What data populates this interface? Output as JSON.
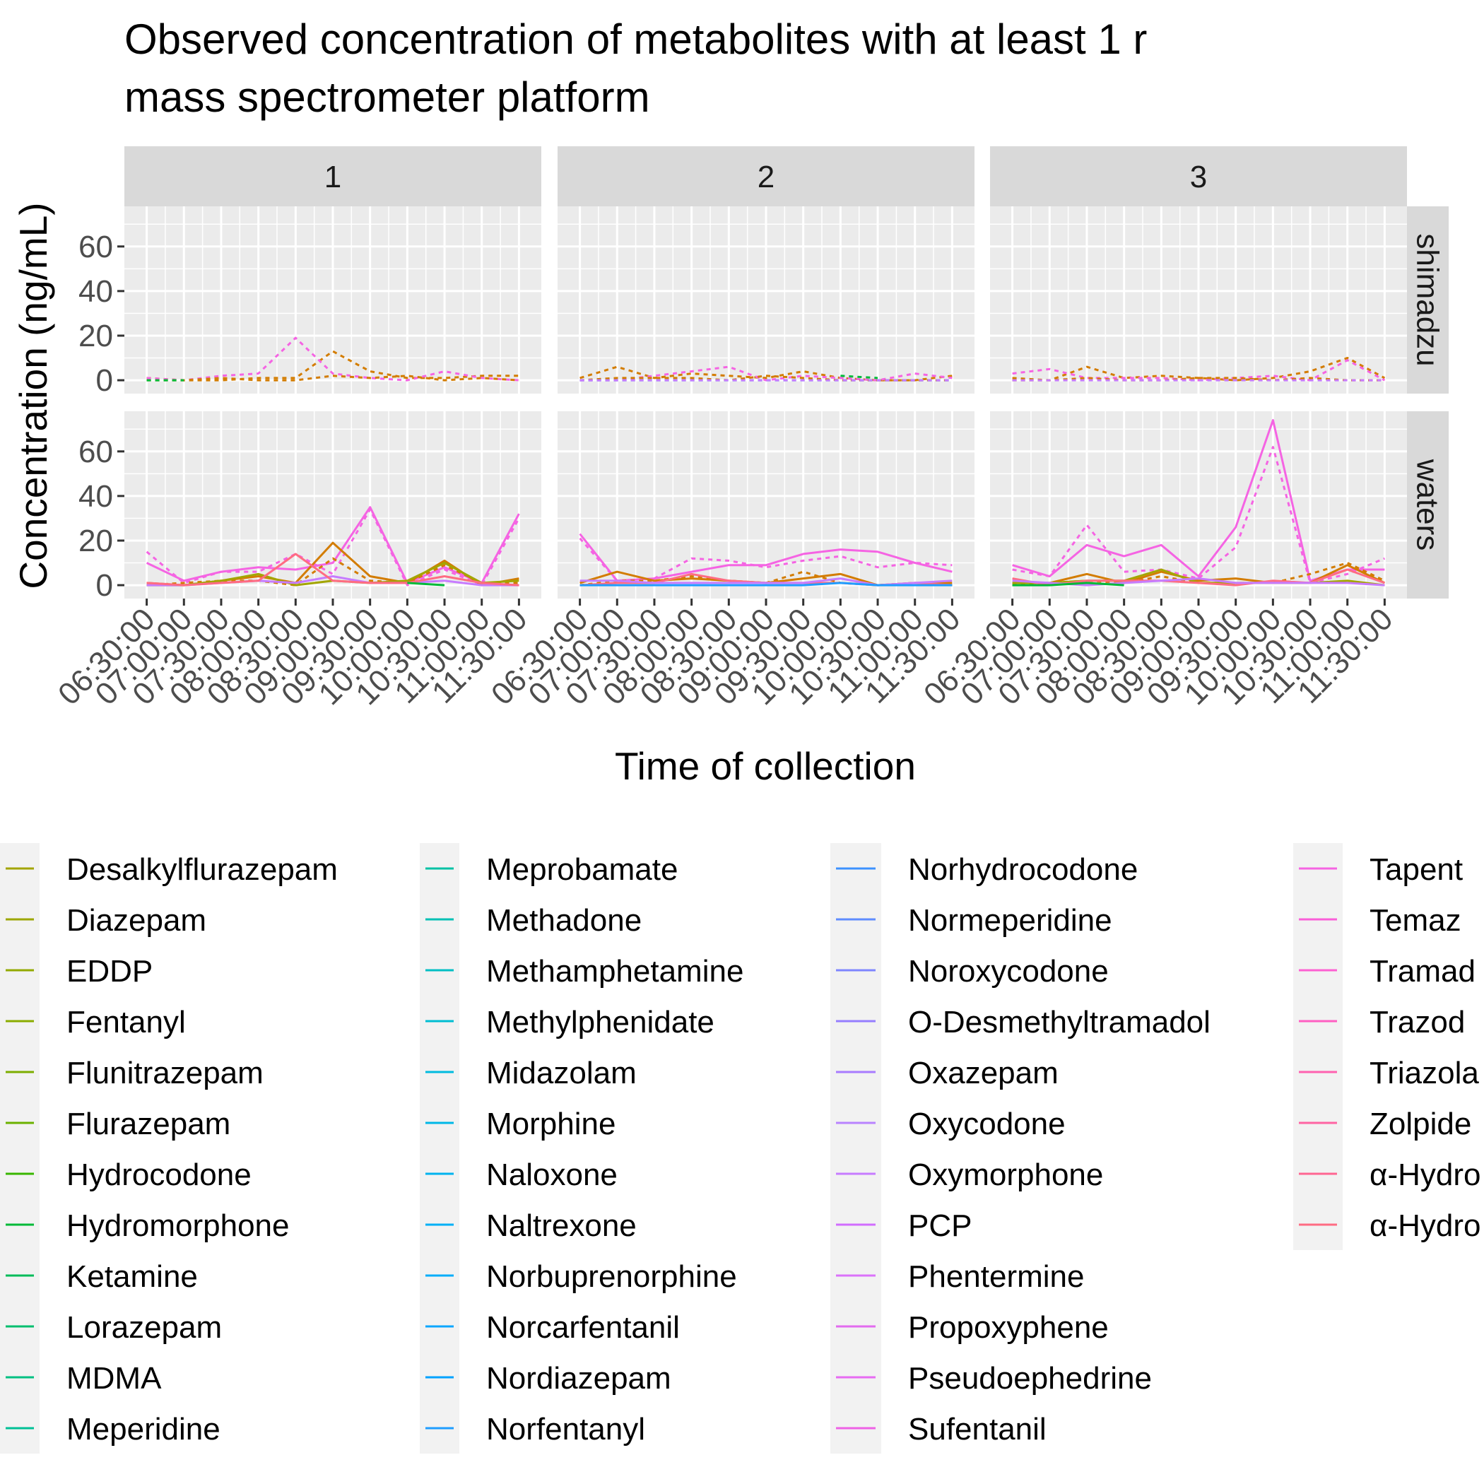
{
  "chart_data": {
    "type": "line",
    "title": "Observed concentration of metabolites with at least 1 r",
    "subtitle": "mass spectrometer platform",
    "xlabel": "Time of collection",
    "ylabel": "Concentration (ng/mL)",
    "ylim": [
      -6,
      78
    ],
    "y_ticks": [
      "0",
      "20",
      "40",
      "60"
    ],
    "x": [
      "06:30:00",
      "07:00:00",
      "07:30:00",
      "08:00:00",
      "08:30:00",
      "09:00:00",
      "09:30:00",
      "10:00:00",
      "10:30:00",
      "11:00:00",
      "11:30:00"
    ],
    "facet_cols": [
      "1",
      "2",
      "3"
    ],
    "facet_rows": [
      "shimadzu",
      "waters"
    ],
    "grid": true,
    "legend_position": "bottom",
    "legend_entries": [
      "Desalkylflurazepam",
      "Diazepam",
      "EDDP",
      "Fentanyl",
      "Flunitrazepam",
      "Flurazepam",
      "Hydrocodone",
      "Hydromorphone",
      "Ketamine",
      "Lorazepam",
      "MDMA",
      "Meperidine",
      "Meprobamate",
      "Methadone",
      "Methamphetamine",
      "Methylphenidate",
      "Midazolam",
      "Morphine",
      "Naloxone",
      "Naltrexone",
      "Norbuprenorphine",
      "Norcarfentanil",
      "Nordiazepam",
      "Norfentanyl",
      "Norhydrocodone",
      "Normeperidine",
      "Noroxycodone",
      "O-Desmethyltramadol",
      "Oxazepam",
      "Oxycodone",
      "Oxymorphone",
      "PCP",
      "Phentermine",
      "Propoxyphene",
      "Pseudoephedrine",
      "Sufentanil",
      "Tapent",
      "Temaz",
      "Tramad",
      "Trazod",
      "Triazola",
      "Zolpide",
      "α-Hydro",
      "α-Hydro"
    ],
    "legend_colors": [
      "#A3A500",
      "#9CA700",
      "#93AA00",
      "#8AAC00",
      "#7CAE00",
      "#6BB100",
      "#39B600",
      "#00BA38",
      "#00BC59",
      "#00BE6E",
      "#00C082",
      "#00C096",
      "#00C1A5",
      "#00C0B4",
      "#00BFC4",
      "#00BDD2",
      "#00BBDF",
      "#00B8E7",
      "#00B3EF",
      "#00B0F6",
      "#02ADFA",
      "#0CA6FE",
      "#00A2FF",
      "#1F9DFF",
      "#3D92FF",
      "#5F8CFF",
      "#7F86FF",
      "#957EFF",
      "#A87BFF",
      "#B983FF",
      "#C77CFF",
      "#D16DFF",
      "#DB72FB",
      "#E36BEF",
      "#E76BF3",
      "#EE62E6",
      "#F564E3",
      "#FA5FD8",
      "#FD61D1",
      "#FF5FC2",
      "#FF61B0",
      "#FF64A3",
      "#FF6692",
      "#FF6C83"
    ],
    "series": [
      {
        "facet": "1-shimadzu",
        "color": "#D37C00",
        "style": "dashed",
        "values": [
          1,
          0,
          0,
          1,
          1,
          13,
          4,
          1,
          1,
          2,
          2
        ]
      },
      {
        "facet": "1-shimadzu",
        "color": "#F564E3",
        "style": "dashed",
        "values": [
          1,
          0,
          2,
          3,
          19,
          3,
          1,
          0,
          4,
          1,
          0
        ]
      },
      {
        "facet": "1-shimadzu",
        "color": "#D37C00",
        "style": "dashed",
        "values": [
          0,
          0,
          1,
          0,
          0,
          2,
          1,
          2,
          0,
          1,
          0
        ]
      },
      {
        "facet": "1-shimadzu",
        "color": "#00BA38",
        "style": "dashed",
        "values": [
          0,
          0,
          null,
          null,
          null,
          null,
          null,
          null,
          0,
          null,
          null
        ]
      },
      {
        "facet": "2-shimadzu",
        "color": "#D37C00",
        "style": "dashed",
        "values": [
          1,
          6,
          1,
          3,
          2,
          1,
          4,
          1,
          0,
          0,
          2
        ]
      },
      {
        "facet": "2-shimadzu",
        "color": "#F564E3",
        "style": "dashed",
        "values": [
          0,
          0,
          2,
          4,
          6,
          0,
          2,
          1,
          0,
          3,
          1
        ]
      },
      {
        "facet": "2-shimadzu",
        "color": "#D37C00",
        "style": "dashed",
        "values": [
          0,
          1,
          1,
          1,
          0,
          2,
          1,
          0,
          0,
          0,
          0
        ]
      },
      {
        "facet": "2-shimadzu",
        "color": "#00BA38",
        "style": "dashed",
        "values": [
          null,
          null,
          null,
          null,
          null,
          null,
          null,
          2,
          1,
          null,
          null
        ]
      },
      {
        "facet": "2-shimadzu",
        "color": "#1F9DFF",
        "style": "dashed",
        "values": [
          0,
          0,
          0,
          0,
          0,
          0,
          0,
          0,
          0,
          0,
          0
        ]
      },
      {
        "facet": "2-shimadzu",
        "color": "#C77CFF",
        "style": "dashed",
        "values": [
          0,
          0,
          0,
          0,
          0,
          0,
          0,
          0,
          0,
          0,
          0
        ]
      },
      {
        "facet": "3-shimadzu",
        "color": "#D37C00",
        "style": "dashed",
        "values": [
          1,
          0,
          6,
          1,
          2,
          1,
          0,
          1,
          4,
          10,
          1
        ]
      },
      {
        "facet": "3-shimadzu",
        "color": "#F564E3",
        "style": "dashed",
        "values": [
          3,
          5,
          1,
          1,
          1,
          0,
          1,
          2,
          0,
          9,
          0
        ]
      },
      {
        "facet": "3-shimadzu",
        "color": "#D37C00",
        "style": "dashed",
        "values": [
          0,
          0,
          1,
          0,
          0,
          1,
          1,
          0,
          1,
          0,
          0
        ]
      },
      {
        "facet": "3-shimadzu",
        "color": "#C77CFF",
        "style": "dashed",
        "values": [
          0,
          0,
          0,
          0,
          0,
          0,
          0,
          0,
          0,
          0,
          0
        ]
      },
      {
        "facet": "1-waters",
        "color": "#F564E3",
        "style": "solid",
        "values": [
          10,
          2,
          6,
          8,
          7,
          10,
          35,
          1,
          8,
          1,
          32
        ]
      },
      {
        "facet": "1-waters",
        "color": "#F564E3",
        "style": "dashed",
        "values": [
          15,
          1,
          6,
          6,
          14,
          5,
          34,
          0,
          7,
          0,
          30
        ]
      },
      {
        "facet": "1-waters",
        "color": "#D37C00",
        "style": "solid",
        "values": [
          1,
          0,
          2,
          4,
          1,
          19,
          4,
          1,
          11,
          0,
          3
        ]
      },
      {
        "facet": "1-waters",
        "color": "#D37C00",
        "style": "dashed",
        "values": [
          0,
          1,
          2,
          2,
          0,
          12,
          2,
          1,
          9,
          1,
          1
        ]
      },
      {
        "facet": "1-waters",
        "color": "#A3A500",
        "style": "solid",
        "values": [
          0,
          0,
          2,
          5,
          0,
          2,
          1,
          2,
          10,
          1,
          2
        ]
      },
      {
        "facet": "1-waters",
        "color": "#C77CFF",
        "style": "solid",
        "values": [
          0,
          0,
          1,
          2,
          1,
          4,
          1,
          1,
          2,
          0,
          0
        ]
      },
      {
        "facet": "1-waters",
        "color": "#FF6C83",
        "style": "solid",
        "values": [
          1,
          0,
          1,
          2,
          14,
          2,
          1,
          1,
          4,
          1,
          0
        ]
      },
      {
        "facet": "1-waters",
        "color": "#00BA38",
        "style": "solid",
        "values": [
          null,
          null,
          null,
          null,
          null,
          null,
          null,
          1,
          0,
          null,
          null
        ]
      },
      {
        "facet": "2-waters",
        "color": "#F564E3",
        "style": "solid",
        "values": [
          23,
          2,
          3,
          6,
          9,
          9,
          14,
          16,
          15,
          10,
          6
        ]
      },
      {
        "facet": "2-waters",
        "color": "#F564E3",
        "style": "dashed",
        "values": [
          21,
          2,
          3,
          12,
          11,
          8,
          11,
          13,
          8,
          10,
          9
        ]
      },
      {
        "facet": "2-waters",
        "color": "#D37C00",
        "style": "solid",
        "values": [
          1,
          6,
          2,
          3,
          2,
          1,
          3,
          5,
          0,
          1,
          1
        ]
      },
      {
        "facet": "2-waters",
        "color": "#D37C00",
        "style": "dashed",
        "values": [
          0,
          2,
          2,
          4,
          2,
          1,
          6,
          1,
          0,
          1,
          0
        ]
      },
      {
        "facet": "2-waters",
        "color": "#FF6C83",
        "style": "solid",
        "values": [
          0,
          1,
          1,
          5,
          2,
          1,
          1,
          1,
          0,
          1,
          0
        ]
      },
      {
        "facet": "2-waters",
        "color": "#C77CFF",
        "style": "solid",
        "values": [
          2,
          2,
          1,
          1,
          1,
          1,
          1,
          3,
          0,
          1,
          2
        ]
      },
      {
        "facet": "2-waters",
        "color": "#1F9DFF",
        "style": "solid",
        "values": [
          0,
          0,
          0,
          0,
          0,
          0,
          0,
          1,
          0,
          0,
          0
        ]
      },
      {
        "facet": "3-waters",
        "color": "#F564E3",
        "style": "solid",
        "values": [
          9,
          4,
          18,
          13,
          18,
          4,
          26,
          74,
          2,
          7,
          7
        ]
      },
      {
        "facet": "3-waters",
        "color": "#F564E3",
        "style": "dashed",
        "values": [
          7,
          4,
          27,
          6,
          7,
          3,
          17,
          62,
          1,
          5,
          12
        ]
      },
      {
        "facet": "3-waters",
        "color": "#D37C00",
        "style": "solid",
        "values": [
          1,
          1,
          5,
          1,
          6,
          2,
          3,
          1,
          1,
          9,
          1
        ]
      },
      {
        "facet": "3-waters",
        "color": "#D37C00",
        "style": "dashed",
        "values": [
          0,
          1,
          2,
          1,
          4,
          1,
          1,
          1,
          5,
          10,
          2
        ]
      },
      {
        "facet": "3-waters",
        "color": "#A3A500",
        "style": "solid",
        "values": [
          1,
          1,
          2,
          2,
          7,
          1,
          1,
          1,
          1,
          2,
          0
        ]
      },
      {
        "facet": "3-waters",
        "color": "#FF6C83",
        "style": "solid",
        "values": [
          3,
          0,
          2,
          2,
          2,
          1,
          0,
          2,
          1,
          7,
          1
        ]
      },
      {
        "facet": "3-waters",
        "color": "#C77CFF",
        "style": "solid",
        "values": [
          2,
          1,
          0,
          1,
          2,
          3,
          1,
          1,
          1,
          1,
          0
        ]
      },
      {
        "facet": "3-waters",
        "color": "#00BA38",
        "style": "solid",
        "values": [
          0,
          0,
          1,
          0,
          null,
          null,
          null,
          null,
          null,
          null,
          null
        ]
      }
    ]
  }
}
